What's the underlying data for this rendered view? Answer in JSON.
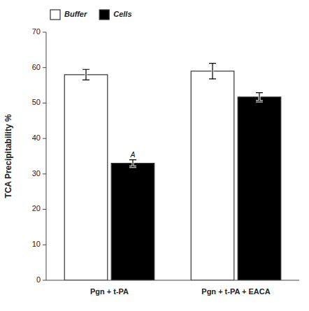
{
  "chart_data": {
    "type": "bar",
    "categories": [
      "Pgn + t-PA",
      "Pgn + t-PA + EACA"
    ],
    "series": [
      {
        "name": "Buffer",
        "color": "#ffffff",
        "values": [
          58.0,
          59.0
        ],
        "errors": [
          1.5,
          2.2
        ]
      },
      {
        "name": "Cells",
        "color": "#000000",
        "values": [
          33.0,
          51.7
        ],
        "errors": [
          1.0,
          1.2
        ]
      }
    ],
    "ylabel": "TCA Precipitability %",
    "ylim": [
      0,
      70
    ],
    "yticks": [
      0,
      10,
      20,
      30,
      40,
      50,
      60,
      70
    ],
    "annotations": [
      {
        "text": "A",
        "category": "Pgn + t-PA",
        "series": "Cells",
        "y": 34.2
      }
    ],
    "legend": "upper left",
    "grid": false
  }
}
